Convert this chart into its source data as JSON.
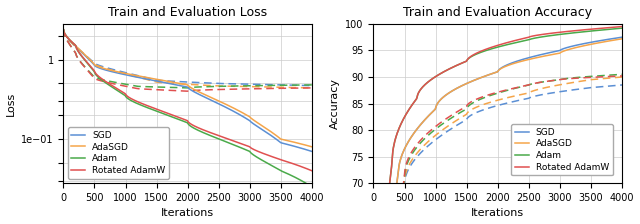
{
  "title_loss": "Train and Evaluation Loss",
  "title_acc": "Train and Evaluation Accuracy",
  "xlabel": "Iterations",
  "ylabel_loss": "Loss",
  "ylabel_acc": "Accuracy",
  "x_max": 4000,
  "x_ticks": [
    0,
    500,
    1000,
    1500,
    2000,
    2500,
    3000,
    3500,
    4000
  ],
  "loss_ylim": [
    0.028,
    2.8
  ],
  "acc_ylim": [
    70,
    100
  ],
  "acc_yticks": [
    70,
    75,
    80,
    85,
    90,
    95,
    100
  ],
  "colors": {
    "SGD": "#5b8fd4",
    "AdaSGD": "#f5a54a",
    "Adam": "#4aaa4a",
    "Rotated AdamW": "#e05050"
  },
  "legend_labels": [
    "SGD",
    "AdaSGD",
    "Adam",
    "Rotated AdamW"
  ]
}
